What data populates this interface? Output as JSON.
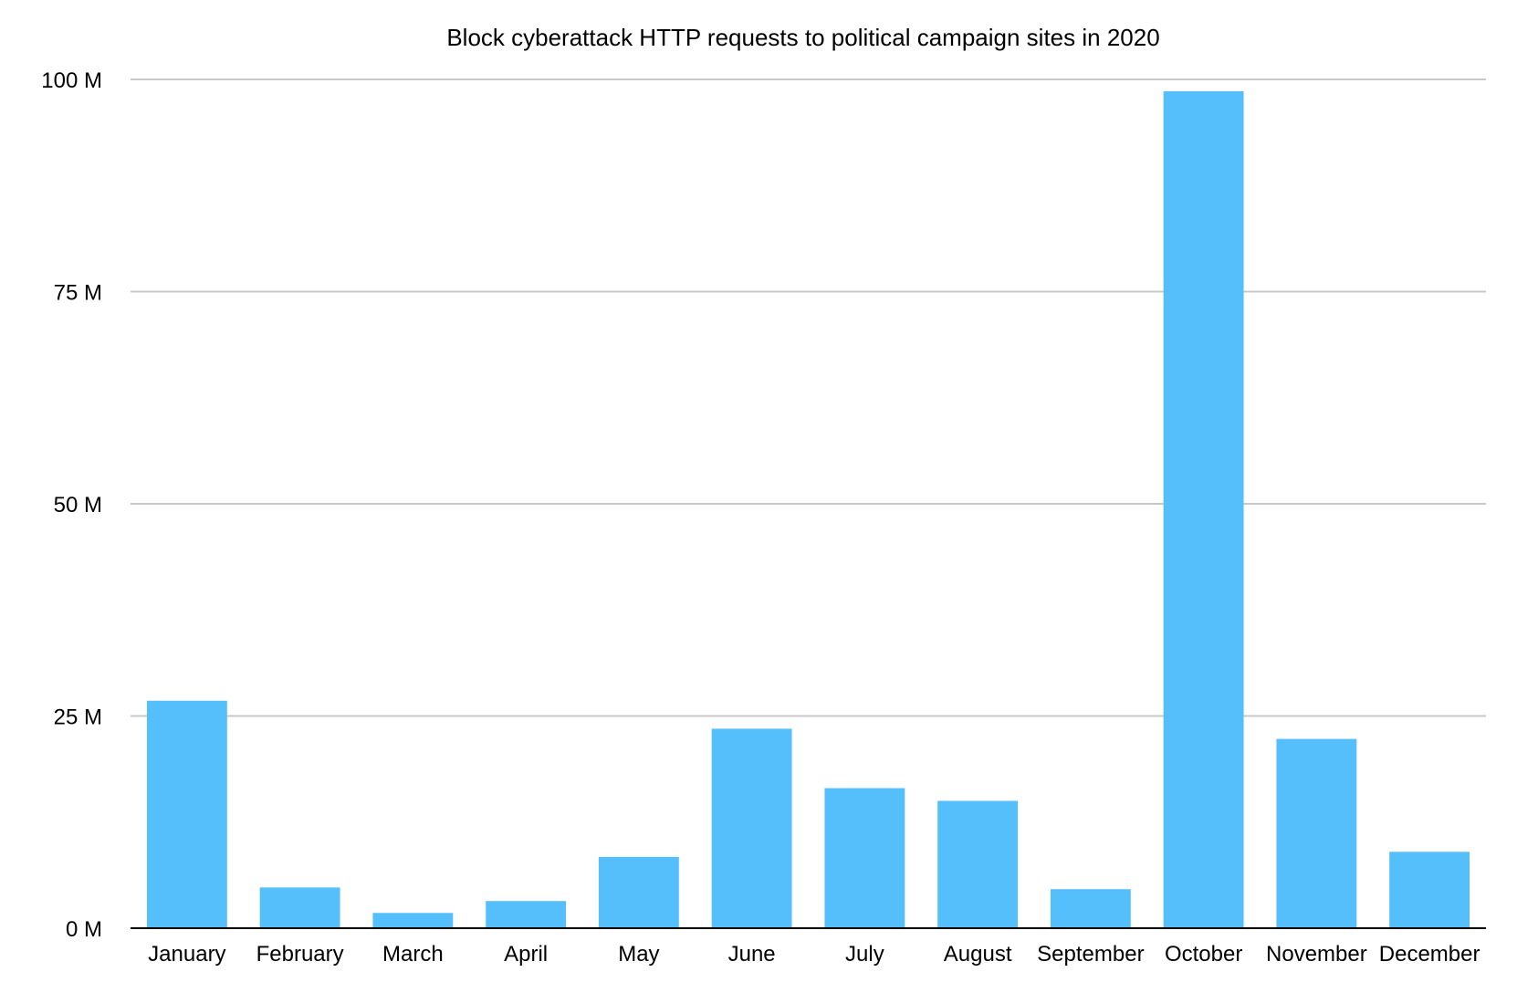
{
  "chart_data": {
    "type": "bar",
    "title": "Block cyberattack HTTP requests to political campaign sites in 2020",
    "xlabel": "",
    "ylabel": "",
    "categories": [
      "January",
      "February",
      "March",
      "April",
      "May",
      "June",
      "July",
      "August",
      "September",
      "October",
      "November",
      "December"
    ],
    "values": [
      26.8,
      4.8,
      1.8,
      3.2,
      8.4,
      23.5,
      16.5,
      15.0,
      4.6,
      98.6,
      22.3,
      9.0
    ],
    "unit": "M",
    "ylim": [
      0,
      100
    ],
    "yticks": [
      0,
      25,
      50,
      75,
      100
    ],
    "ytick_labels": [
      "0 M",
      "25 M",
      "50 M",
      "75 M",
      "100 M"
    ],
    "grid": true,
    "legend": "none",
    "colors": {
      "bar": "#55bffc",
      "grid": "#c8c8c8",
      "axis": "#000000"
    }
  }
}
